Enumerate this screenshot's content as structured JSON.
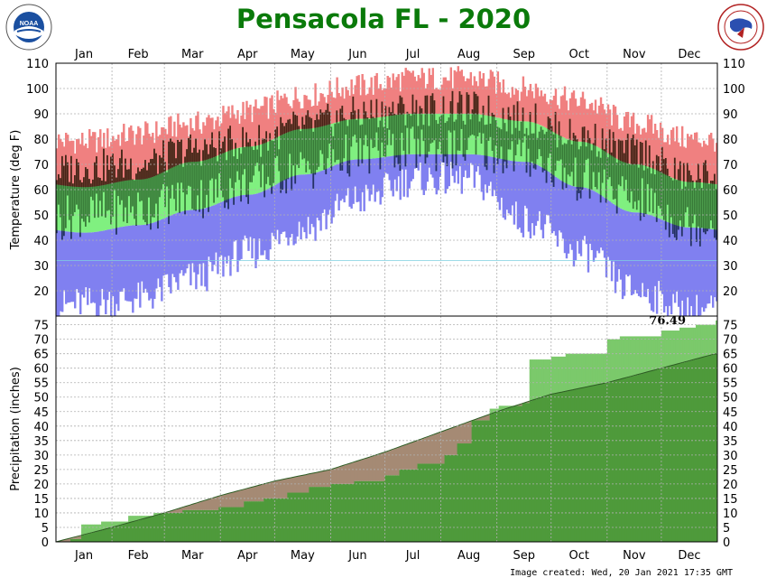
{
  "title": "Pensacola FL - 2020",
  "footer_text": "Image created: Wed, 20 Jan 2021 17:35 GMT",
  "logos": {
    "left": "noaa-logo",
    "right": "national-weather-service-logo"
  },
  "colors": {
    "record_high": "#f08080",
    "record_low": "#8080f0",
    "normal_band": "#80f080",
    "actual_bar": "#4a0f0f",
    "actual_in_normal": "#2f6b2f",
    "actual_in_low": "#202070",
    "precip_normal": "#a58a74",
    "precip_actual": "#4e9a3b",
    "precip_above_normal": "#7bc96b",
    "grid": "#b0b0b0",
    "title": "#0a7a0a"
  },
  "chart_data": [
    {
      "type": "area",
      "name": "temperature",
      "ylabel": "Temperature (deg F)",
      "ylim": [
        10,
        110
      ],
      "yticks": [
        20,
        30,
        40,
        50,
        60,
        70,
        80,
        90,
        100,
        110
      ],
      "months": [
        "Jan",
        "Feb",
        "Mar",
        "Apr",
        "May",
        "Jun",
        "Jul",
        "Aug",
        "Sep",
        "Oct",
        "Nov",
        "Dec"
      ],
      "grid": true,
      "normal_high_monthly": [
        61,
        64,
        71,
        77,
        84,
        88,
        90,
        90,
        87,
        79,
        70,
        63
      ],
      "normal_low_monthly": [
        43,
        46,
        52,
        58,
        66,
        72,
        74,
        74,
        71,
        61,
        51,
        45
      ],
      "record_high_monthly": [
        79,
        82,
        86,
        91,
        97,
        101,
        104,
        104,
        100,
        95,
        86,
        80
      ],
      "record_low_monthly": [
        15,
        17,
        25,
        35,
        45,
        56,
        64,
        64,
        48,
        35,
        20,
        12
      ],
      "actual_high_monthly": [
        69,
        70,
        76,
        79,
        85,
        90,
        92,
        92,
        88,
        81,
        75,
        65
      ],
      "actual_low_monthly": [
        50,
        52,
        57,
        62,
        68,
        74,
        76,
        76,
        73,
        64,
        56,
        46
      ]
    },
    {
      "type": "area",
      "name": "precipitation",
      "ylabel": "Precipitation (inches)",
      "ylim": [
        0,
        78
      ],
      "yticks": [
        0,
        5,
        10,
        15,
        20,
        25,
        30,
        35,
        40,
        45,
        50,
        55,
        60,
        65,
        70,
        75
      ],
      "months": [
        "Jan",
        "Feb",
        "Mar",
        "Apr",
        "May",
        "Jun",
        "Jul",
        "Aug",
        "Sep",
        "Oct",
        "Nov",
        "Dec"
      ],
      "grid": true,
      "total_label": "76.49",
      "normal_cumulative": {
        "day": [
          0,
          31,
          60,
          91,
          121,
          152,
          182,
          213,
          244,
          274,
          305,
          335,
          365
        ],
        "value": [
          0,
          5,
          10,
          16,
          21,
          25,
          31,
          38,
          45,
          51,
          55,
          60,
          65
        ]
      },
      "actual_cumulative": {
        "day": [
          0,
          8,
          14,
          25,
          40,
          54,
          70,
          90,
          104,
          115,
          128,
          140,
          152,
          165,
          182,
          190,
          200,
          215,
          222,
          230,
          240,
          245,
          258,
          262,
          274,
          282,
          305,
          312,
          335,
          345,
          354,
          365
        ],
        "value": [
          0,
          1,
          6,
          7,
          9,
          10,
          11,
          12,
          14,
          15,
          17,
          19,
          20,
          21,
          23,
          25,
          27,
          30,
          34,
          42,
          46,
          47,
          48,
          63,
          64,
          65,
          70,
          71,
          73,
          74,
          75,
          76.49
        ]
      }
    }
  ]
}
